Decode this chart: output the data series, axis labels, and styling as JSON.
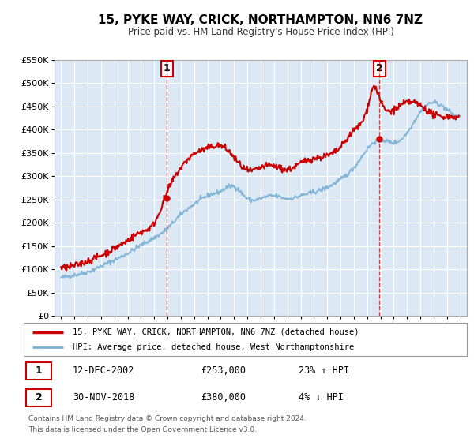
{
  "title": "15, PYKE WAY, CRICK, NORTHAMPTON, NN6 7NZ",
  "subtitle": "Price paid vs. HM Land Registry's House Price Index (HPI)",
  "legend_line1": "15, PYKE WAY, CRICK, NORTHAMPTON, NN6 7NZ (detached house)",
  "legend_line2": "HPI: Average price, detached house, West Northamptonshire",
  "footnote1": "Contains HM Land Registry data © Crown copyright and database right 2024.",
  "footnote2": "This data is licensed under the Open Government Licence v3.0.",
  "sale1_label": "1",
  "sale1_date": "12-DEC-2002",
  "sale1_price": "£253,000",
  "sale1_hpi": "23% ↑ HPI",
  "sale2_label": "2",
  "sale2_date": "30-NOV-2018",
  "sale2_price": "£380,000",
  "sale2_hpi": "4% ↓ HPI",
  "price_color": "#cc0000",
  "hpi_color": "#7ab0d4",
  "background_color": "#dce9f5",
  "grid_color": "#ffffff",
  "sale1_x": 2002.95,
  "sale1_y": 253000,
  "sale2_x": 2018.92,
  "sale2_y": 380000,
  "ylim": [
    0,
    550000
  ],
  "xlim_start": 1994.5,
  "xlim_end": 2025.5,
  "yticks": [
    0,
    50000,
    100000,
    150000,
    200000,
    250000,
    300000,
    350000,
    400000,
    450000,
    500000,
    550000
  ],
  "ytick_labels": [
    "£0",
    "£50K",
    "£100K",
    "£150K",
    "£200K",
    "£250K",
    "£300K",
    "£350K",
    "£400K",
    "£450K",
    "£500K",
    "£550K"
  ],
  "xticks": [
    1995,
    1996,
    1997,
    1998,
    1999,
    2000,
    2001,
    2002,
    2003,
    2004,
    2005,
    2006,
    2007,
    2008,
    2009,
    2010,
    2011,
    2012,
    2013,
    2014,
    2015,
    2016,
    2017,
    2018,
    2019,
    2020,
    2021,
    2022,
    2023,
    2024,
    2025
  ],
  "hpi_control_years": [
    1995,
    1996,
    1997,
    1998,
    1999,
    2000,
    2001,
    2002,
    2003,
    2004,
    2005,
    2006,
    2007,
    2008,
    2009,
    2010,
    2011,
    2012,
    2013,
    2014,
    2015,
    2016,
    2017,
    2018,
    2019,
    2020,
    2021,
    2022,
    2023,
    2024,
    2025
  ],
  "hpi_control_vals": [
    82000,
    88000,
    95000,
    107000,
    120000,
    135000,
    152000,
    168000,
    188000,
    218000,
    240000,
    258000,
    268000,
    278000,
    252000,
    252000,
    258000,
    252000,
    258000,
    266000,
    276000,
    293000,
    318000,
    358000,
    378000,
    372000,
    393000,
    438000,
    458000,
    443000,
    428000
  ],
  "price_control_years": [
    1995,
    1996,
    1997,
    1998,
    1999,
    2000,
    2001,
    2002,
    2003,
    2004,
    2005,
    2006,
    2007,
    2008,
    2009,
    2010,
    2011,
    2012,
    2013,
    2014,
    2015,
    2016,
    2017,
    2018,
    2018.5,
    2019,
    2020,
    2021,
    2022,
    2023,
    2024,
    2024.9
  ],
  "price_control_vals": [
    103000,
    108000,
    118000,
    130000,
    145000,
    162000,
    180000,
    200000,
    268000,
    318000,
    348000,
    360000,
    365000,
    340000,
    312000,
    318000,
    322000,
    314000,
    328000,
    338000,
    344000,
    362000,
    398000,
    445000,
    492000,
    462000,
    442000,
    458000,
    452000,
    432000,
    428000,
    425000
  ]
}
